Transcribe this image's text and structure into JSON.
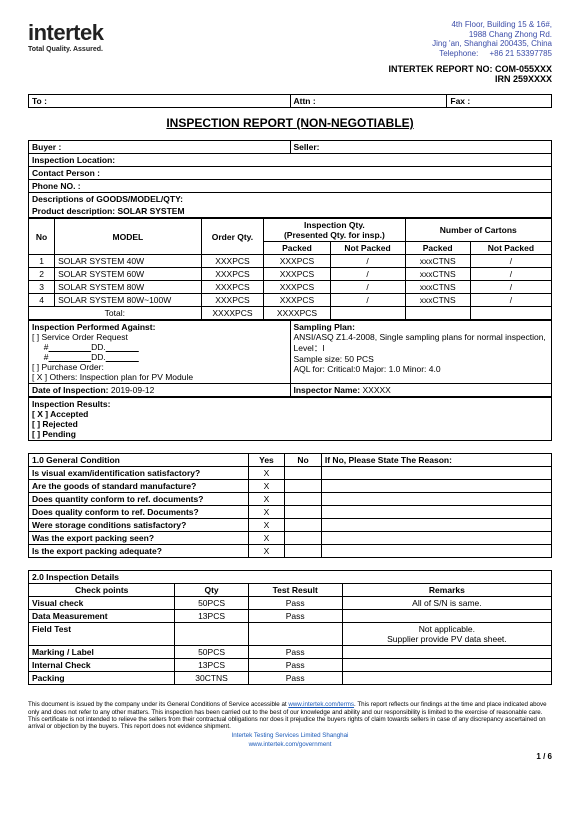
{
  "header": {
    "logo_name": "intertek",
    "logo_tag": "Total Quality. Assured.",
    "addr1": "4th Floor, Building 15 & 16#,",
    "addr2": "1988 Chang Zhong Rd.",
    "addr3": "Jing 'an, Shanghai 200435, China",
    "tel_label": "Telephone:",
    "tel_val": "+86 21 53397785",
    "report_no_label": "INTERTEK REPORT NO: COM-055XXX",
    "irn": "IRN 259XXXX"
  },
  "toattn": {
    "to": "To :",
    "attn": "Attn :",
    "fax": "Fax :"
  },
  "title": "INSPECTION REPORT (NON-NEGOTIABLE)",
  "info": {
    "buyer": "Buyer :",
    "seller": "Seller:",
    "loc": "Inspection Location:",
    "contact": "Contact Person :",
    "phone": "Phone NO. :",
    "desc_hdr": "Descriptions of GOODS/MODEL/QTY:",
    "prod_desc": "Product description: SOLAR SYSTEM"
  },
  "models": {
    "hdr_no": "No",
    "hdr_model": "MODEL",
    "hdr_order": "Order Qty.",
    "hdr_insp": "Inspection Qty.\n(Presented Qty. for insp.)",
    "hdr_cartons": "Number of Cartons",
    "hdr_packed": "Packed",
    "hdr_notpacked": "Not Packed",
    "rows": [
      {
        "no": "1",
        "model": "SOLAR SYSTEM 40W",
        "order": "XXXPCS",
        "packed": "XXXPCS",
        "np": "/",
        "cp": "xxxCTNS",
        "cnp": "/"
      },
      {
        "no": "2",
        "model": "SOLAR SYSTEM 60W",
        "order": "XXXPCS",
        "packed": "XXXPCS",
        "np": "/",
        "cp": "xxxCTNS",
        "cnp": "/"
      },
      {
        "no": "3",
        "model": "SOLAR SYSTEM 80W",
        "order": "XXXPCS",
        "packed": "XXXPCS",
        "np": "/",
        "cp": "xxxCTNS",
        "cnp": "/"
      },
      {
        "no": "4",
        "model": "SOLAR SYSTEM 80W~100W",
        "order": "XXXPCS",
        "packed": "XXXPCS",
        "np": "/",
        "cp": "xxxCTNS",
        "cnp": "/"
      }
    ],
    "total_label": "Total:",
    "total_order": "XXXXPCS",
    "total_packed": "XXXXPCS"
  },
  "against": {
    "hdr": "Inspection Performed Against:",
    "l1": "[  ] Service Order Request",
    "l2a": "#",
    "l2b": "DD.",
    "l3a": "#",
    "l3b": "DD.",
    "l4": "[   ] Purchase Order:",
    "l5": "[ X ] Others: Inspection plan for PV Module",
    "samp_hdr": "Sampling Plan:",
    "samp_l1": "ANSI/ASQ Z1.4-2008, Single sampling plans for normal inspection,",
    "samp_l2": "Level：I",
    "samp_l3": "Sample size: 50 PCS",
    "samp_l4": "AQL for: Critical:0            Major: 1.0        Minor: 4.0",
    "date_label": "Date of Inspection:",
    "date_val": "2019-09-12",
    "insp_label": "Inspector Name:",
    "insp_val": "XXXXX"
  },
  "results": {
    "hdr": "Inspection Results:",
    "acc": "[ X ] Accepted",
    "rej": "[   ] Rejected",
    "pen": "[   ] Pending"
  },
  "gc": {
    "hdr": "1.0 General Condition",
    "yes": "Yes",
    "no": "No",
    "reason": "If No, Please State The Reason:",
    "rows": [
      {
        "q": "Is visual exam/identification satisfactory?",
        "y": "X",
        "n": ""
      },
      {
        "q": "Are the goods of standard manufacture?",
        "y": "X",
        "n": ""
      },
      {
        "q": "Does quantity conform to ref. documents?",
        "y": "X",
        "n": ""
      },
      {
        "q": "Does quality conform to ref. Documents?",
        "y": "X",
        "n": ""
      },
      {
        "q": "Were storage conditions satisfactory?",
        "y": "X",
        "n": ""
      },
      {
        "q": "Was the export packing seen?",
        "y": "X",
        "n": ""
      },
      {
        "q": "Is the export packing adequate?",
        "y": "X",
        "n": ""
      }
    ]
  },
  "details": {
    "hdr": "2.0 Inspection Details",
    "col_cp": "Check points",
    "col_qty": "Qty",
    "col_res": "Test Result",
    "col_rem": "Remarks",
    "rows": [
      {
        "cp": "Visual check",
        "qty": "50PCS",
        "res": "Pass",
        "rem": "All of S/N is same."
      },
      {
        "cp": "Data Measurement",
        "qty": "13PCS",
        "res": "Pass",
        "rem": ""
      },
      {
        "cp": "Field Test",
        "qty": "",
        "res": "",
        "rem": "Not applicable.\nSupplier provide PV data sheet."
      },
      {
        "cp": "Marking / Label",
        "qty": "50PCS",
        "res": "Pass",
        "rem": ""
      },
      {
        "cp": "Internal Check",
        "qty": "13PCS",
        "res": "Pass",
        "rem": ""
      },
      {
        "cp": "Packing",
        "qty": "30CTNS",
        "res": "Pass",
        "rem": ""
      }
    ]
  },
  "disclaimer": {
    "text1": "This document is issued by the company under its General Conditions of Service accessible at ",
    "link1": "www.intertek.com/terms",
    "text2": ". This report reflects our findings at the time and place indicated above only and does not refer to any other matters. This inspection has been carried out to the best of our knowledge and ability and our responsibility is limited to the exercise of reasonable care. This certificate is not intended to relieve the sellers from their contractual obligations nor does it prejudice the buyers rights of claim towards sellers in case of any discrepancy ascertained on arrival or objection by the buyers. This report does not evidence shipment.",
    "center1": "Intertek Testing Services Limited Shanghai",
    "center2": "www.intertek.com/government"
  },
  "page": "1 / 6"
}
